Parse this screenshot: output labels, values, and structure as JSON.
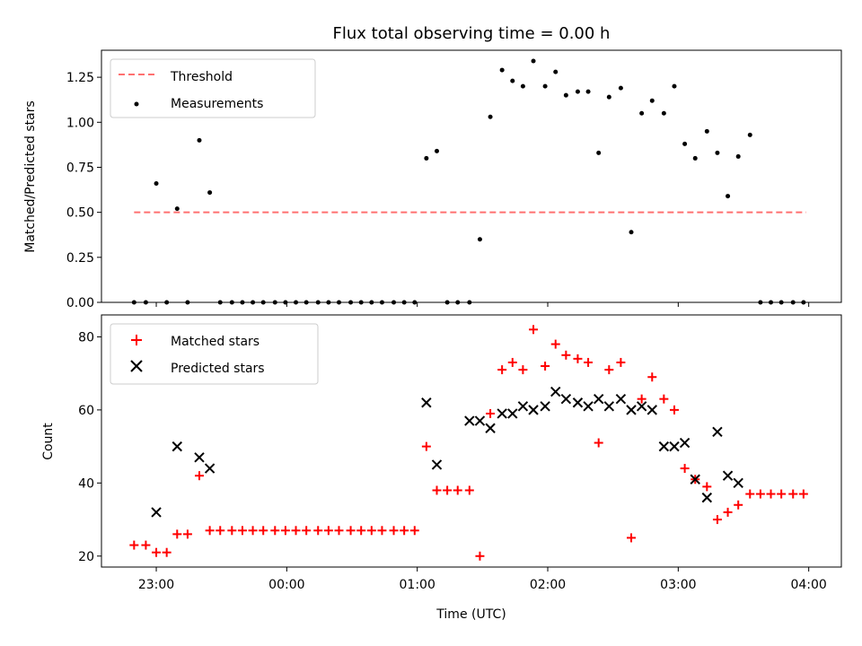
{
  "title": "Flux total observing time = 0.00 h",
  "chart_data": [
    {
      "type": "scatter",
      "ylabel": "Matched/Predicted stars",
      "xlabel": "",
      "xlim": [
        -0.42,
        5.25
      ],
      "ylim": [
        0,
        1.4
      ],
      "yticks": [
        0,
        0.25,
        0.5,
        0.75,
        1.0,
        1.25
      ],
      "ytick_labels": [
        "0.00",
        "0.25",
        "0.50",
        "0.75",
        "1.00",
        "1.25"
      ],
      "xticks": [
        0,
        1,
        2,
        3,
        4,
        5
      ],
      "legend": [
        {
          "name": "Threshold",
          "color": "#ff7070",
          "style": "dashed"
        },
        {
          "name": "Measurements",
          "color": "#000000",
          "style": "dot"
        }
      ],
      "legend_position": "top-left",
      "threshold": {
        "name": "Threshold",
        "value": 0.5,
        "x_range": [
          -0.17,
          4.98
        ]
      },
      "series": [
        {
          "name": "Measurements",
          "x": [
            -0.17,
            -0.08,
            0.0,
            0.08,
            0.16,
            0.24,
            0.33,
            0.41,
            0.49,
            0.58,
            0.66,
            0.74,
            0.82,
            0.91,
            0.99,
            1.07,
            1.15,
            1.24,
            1.32,
            1.4,
            1.49,
            1.57,
            1.65,
            1.73,
            1.82,
            1.9,
            1.98,
            2.07,
            2.15,
            2.23,
            2.31,
            2.4,
            2.48,
            2.56,
            2.65,
            2.73,
            2.81,
            2.89,
            2.98,
            3.06,
            3.14,
            3.23,
            3.31,
            3.39,
            3.47,
            3.56,
            3.64,
            3.72,
            3.8,
            3.89,
            3.97,
            4.05,
            4.13,
            4.22,
            4.3,
            4.38,
            4.46,
            4.55,
            4.63,
            4.71,
            4.79,
            4.88,
            4.96
          ],
          "y": [
            0,
            0,
            0.66,
            0,
            0.52,
            0,
            0.9,
            0.61,
            0,
            0,
            0,
            0,
            0,
            0,
            0,
            0,
            0,
            0,
            0,
            0,
            0,
            0,
            0,
            0,
            0,
            0,
            0,
            0.8,
            0.84,
            0,
            0,
            0,
            0.35,
            1.03,
            1.29,
            1.23,
            1.2,
            1.34,
            1.2,
            1.28,
            1.15,
            1.17,
            1.17,
            0.83,
            1.14,
            1.19,
            0.39,
            1.05,
            1.12,
            1.05,
            1.2,
            0.88,
            0.8,
            0.95,
            0.83,
            0.59,
            0.81,
            0.93,
            0,
            0,
            0,
            0,
            0
          ]
        }
      ]
    },
    {
      "type": "scatter",
      "ylabel": "Count",
      "xlabel": "Time (UTC)",
      "xlim": [
        -0.42,
        5.25
      ],
      "ylim": [
        17,
        86
      ],
      "yticks": [
        20,
        40,
        60,
        80
      ],
      "ytick_labels": [
        "20",
        "40",
        "60",
        "80"
      ],
      "xticks": [
        0,
        1,
        2,
        3,
        4,
        5
      ],
      "xtick_labels": [
        "23:00",
        "00:00",
        "01:00",
        "02:00",
        "03:00",
        "04:00"
      ],
      "legend": [
        {
          "name": "Matched stars",
          "color": "#ff0000",
          "marker": "+"
        },
        {
          "name": "Predicted stars",
          "color": "#000000",
          "marker": "x"
        }
      ],
      "legend_position": "top-left",
      "series": [
        {
          "name": "Matched stars",
          "color": "#ff0000",
          "marker": "+",
          "x": [
            -0.17,
            -0.08,
            0.0,
            0.08,
            0.16,
            0.24,
            0.33,
            0.41,
            0.49,
            0.58,
            0.66,
            0.74,
            0.82,
            0.91,
            0.99,
            1.07,
            1.15,
            1.24,
            1.32,
            1.4,
            1.49,
            1.57,
            1.65,
            1.73,
            1.82,
            1.9,
            1.98,
            2.07,
            2.15,
            2.23,
            2.31,
            2.4,
            2.48,
            2.56,
            2.65,
            2.73,
            2.81,
            2.89,
            2.98,
            3.06,
            3.14,
            3.23,
            3.31,
            3.39,
            3.47,
            3.56,
            3.64,
            3.72,
            3.8,
            3.89,
            3.97,
            4.05,
            4.13,
            4.22,
            4.3,
            4.38,
            4.46,
            4.55,
            4.63,
            4.71,
            4.79,
            4.88,
            4.96
          ],
          "y": [
            23,
            23,
            21,
            21,
            26,
            26,
            42,
            27,
            27,
            27,
            27,
            27,
            27,
            27,
            27,
            27,
            27,
            27,
            27,
            27,
            27,
            27,
            27,
            27,
            27,
            27,
            27,
            50,
            38,
            38,
            38,
            38,
            20,
            59,
            71,
            73,
            71,
            82,
            72,
            78,
            75,
            74,
            73,
            51,
            71,
            73,
            25,
            63,
            69,
            63,
            60,
            44,
            41,
            39,
            30,
            32,
            34,
            37,
            37,
            37,
            37,
            37,
            37
          ]
        },
        {
          "name": "Predicted stars",
          "color": "#000000",
          "marker": "x",
          "x": [
            0.0,
            0.16,
            0.33,
            0.41,
            2.07,
            2.15,
            2.4,
            2.48,
            2.56,
            2.65,
            2.73,
            2.81,
            2.89,
            2.98,
            3.06,
            3.14,
            3.23,
            3.31,
            3.39,
            3.47,
            3.56,
            3.64,
            3.72,
            3.8,
            3.89,
            3.97,
            4.05,
            4.13,
            4.22,
            4.3,
            4.38,
            4.46
          ],
          "y": [
            32,
            50,
            47,
            44,
            62,
            45,
            57,
            57,
            55,
            59,
            59,
            61,
            60,
            61,
            65,
            63,
            62,
            61,
            63,
            61,
            63,
            60,
            61,
            60,
            50,
            50,
            51,
            41,
            36,
            54,
            42,
            40
          ]
        }
      ]
    }
  ]
}
